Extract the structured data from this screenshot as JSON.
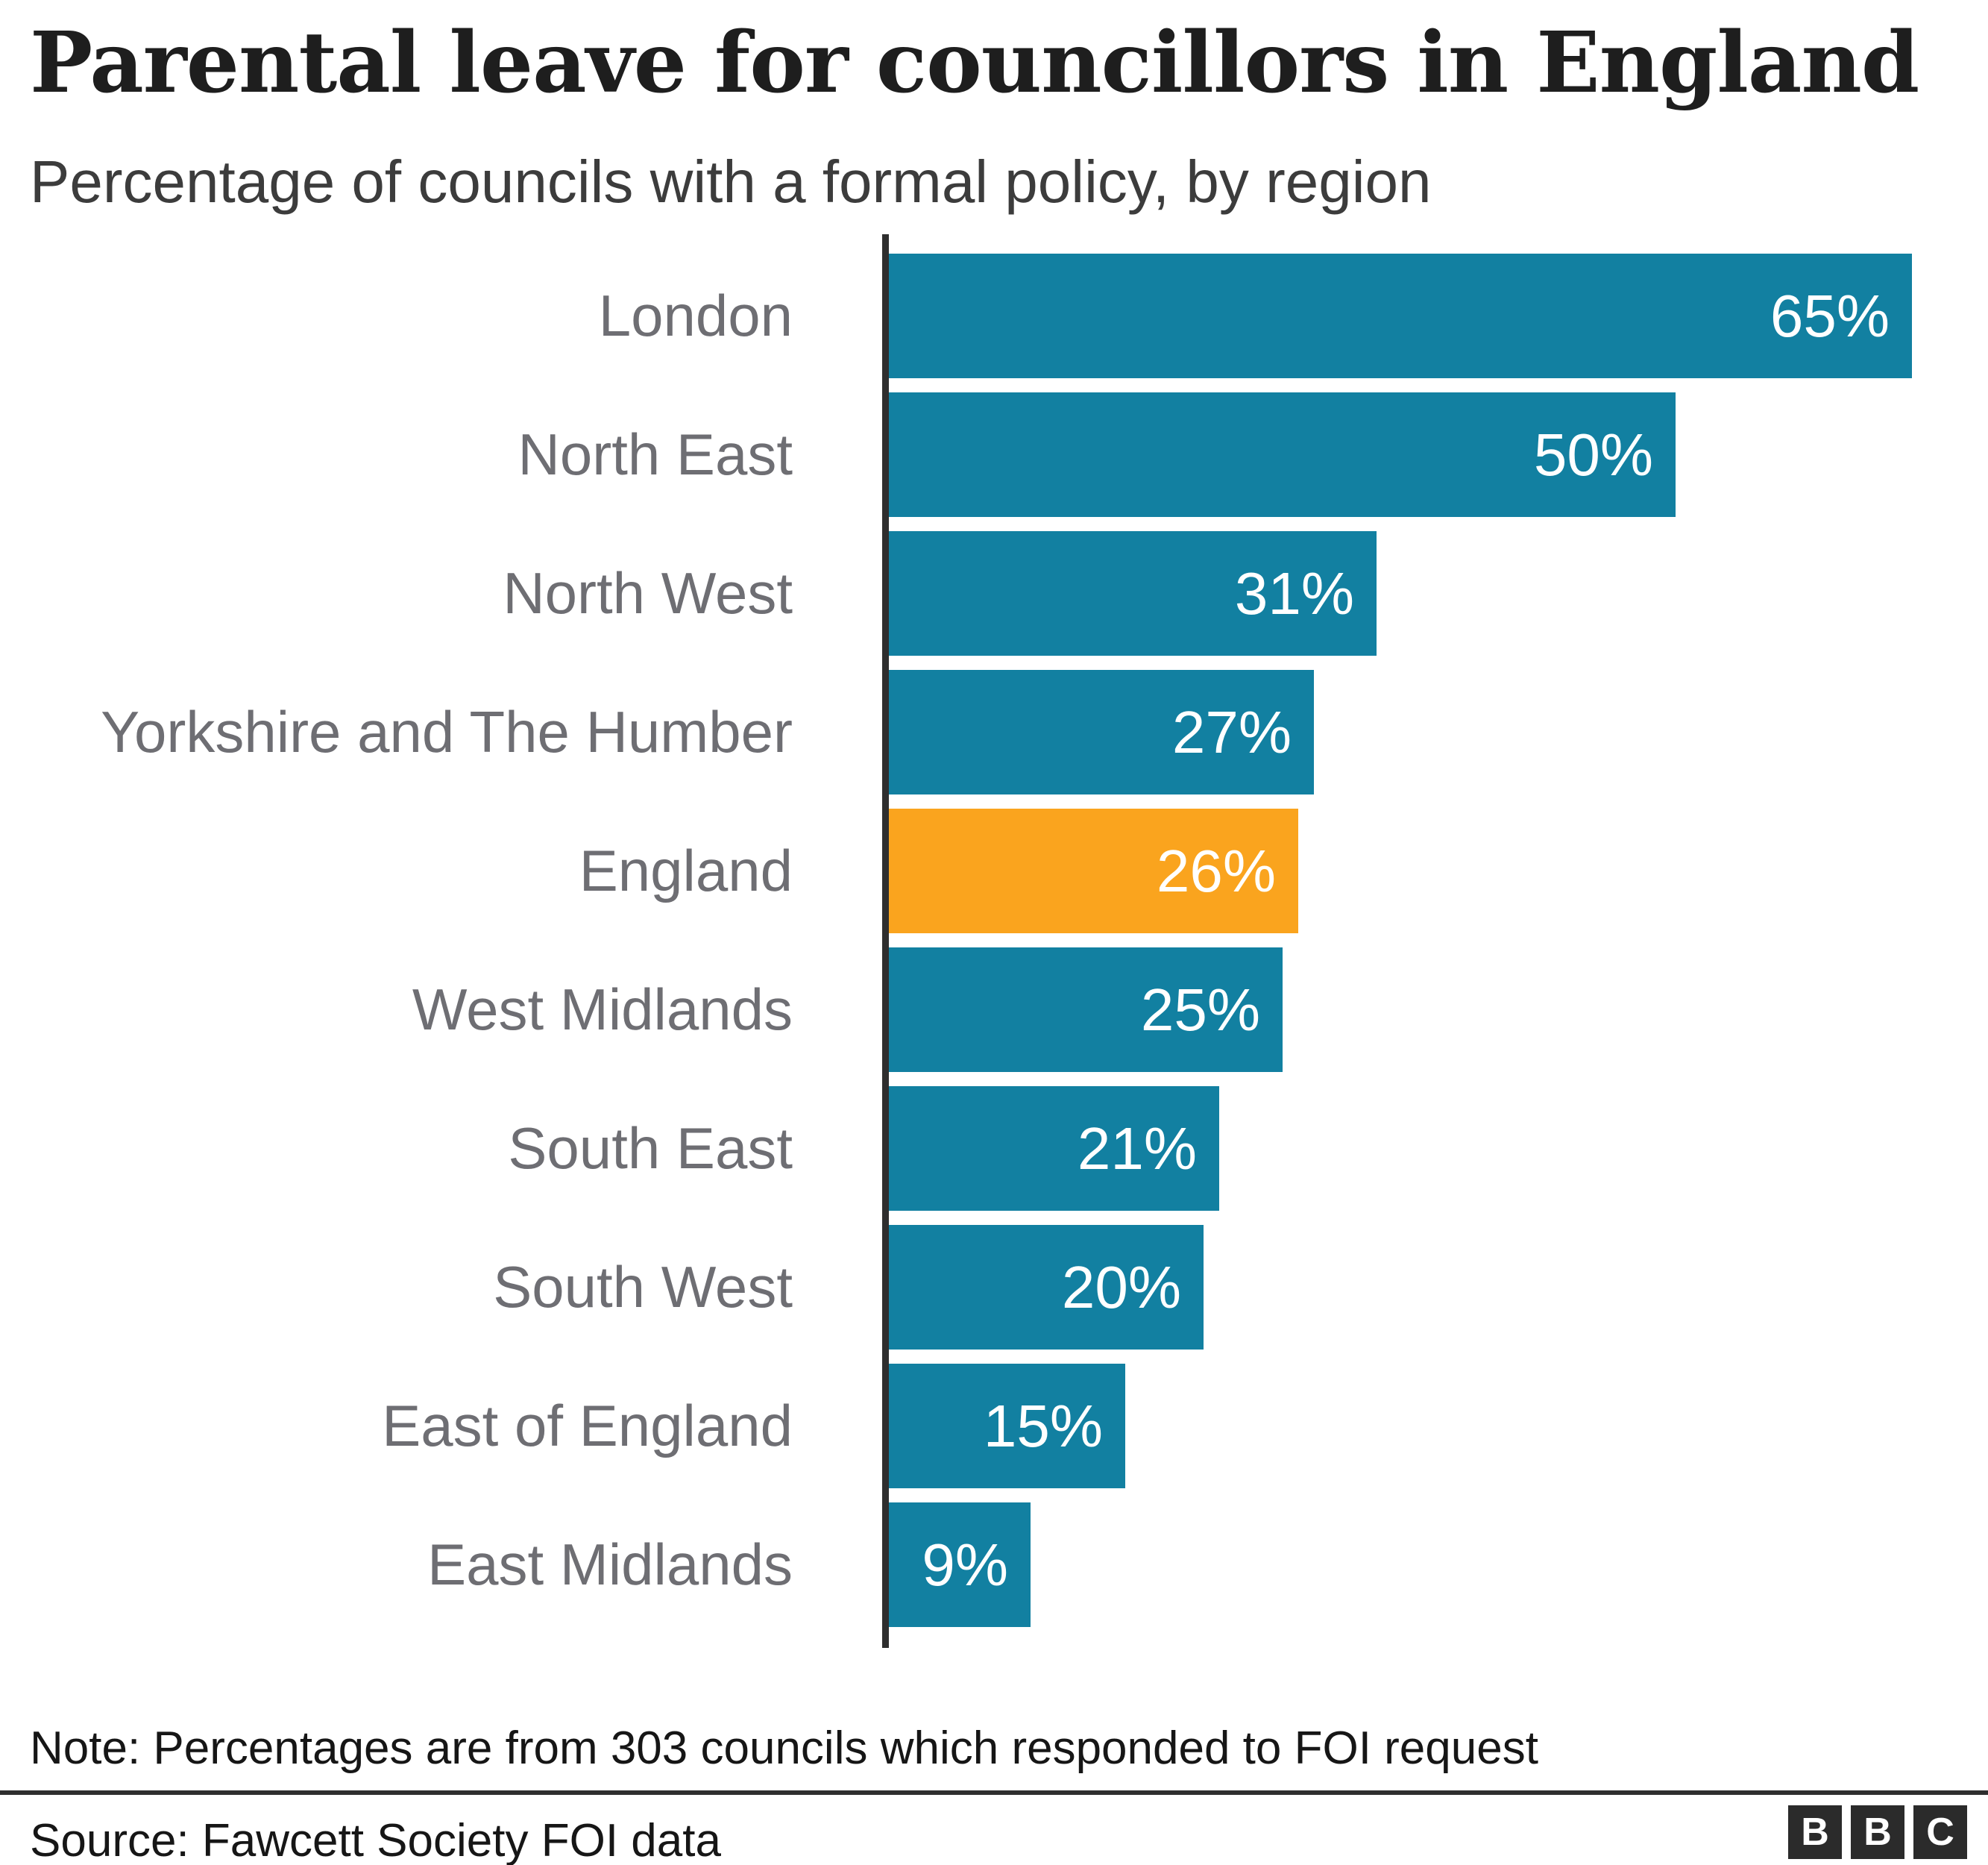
{
  "title": "Parental leave for councillors in England",
  "subtitle": "Percentage of councils with a formal policy, by region",
  "note": "Note: Percentages are from 303 councils which responded to FOI request",
  "source": "Source: Fawcett Society FOI data",
  "logo": {
    "letters": [
      "B",
      "B",
      "C"
    ]
  },
  "colors": {
    "bar": "#1280a1",
    "highlight": "#faa41e",
    "axis": "#2e2e2e",
    "label": "#6e6e73",
    "value_text": "#ffffff"
  },
  "chart_data": {
    "type": "bar",
    "orientation": "horizontal",
    "title": "Parental leave for councillors in England",
    "subtitle": "Percentage of councils with a formal policy, by region",
    "categories": [
      "London",
      "North East",
      "North West",
      "Yorkshire and The Humber",
      "England",
      "West Midlands",
      "South East",
      "South West",
      "East of England",
      "East Midlands"
    ],
    "values": [
      65,
      50,
      31,
      27,
      26,
      25,
      21,
      20,
      15,
      9
    ],
    "value_labels": [
      "65%",
      "50%",
      "31%",
      "27%",
      "26%",
      "25%",
      "21%",
      "20%",
      "15%",
      "9%"
    ],
    "highlight_category": "England",
    "xlim": [
      0,
      70
    ],
    "grid": false,
    "legend": false,
    "value_label_position": "inside-end"
  }
}
